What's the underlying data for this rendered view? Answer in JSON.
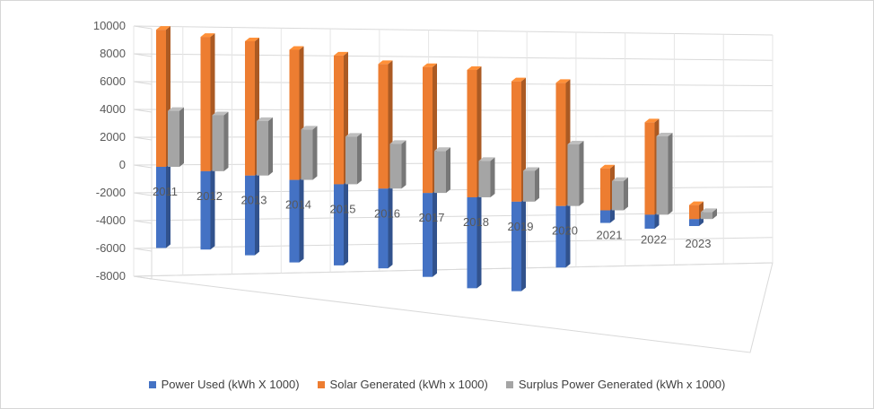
{
  "chart_data": {
    "type": "bar",
    "title": "",
    "xlabel": "",
    "ylabel": "",
    "ylim": [
      -8000,
      10000
    ],
    "yticks": [
      10000,
      8000,
      6000,
      4000,
      2000,
      0,
      -2000,
      -4000,
      -6000,
      -8000
    ],
    "categories": [
      "2011",
      "2012",
      "2013",
      "2014",
      "2015",
      "2016",
      "2017",
      "2018",
      "2019",
      "2020",
      "2021",
      "2022",
      "2023"
    ],
    "series": [
      {
        "name": "Power Used (kWh X 1000)",
        "color": "#4472C4",
        "values": [
          -5800,
          -5600,
          -5700,
          -5900,
          -5800,
          -5700,
          -6000,
          -6500,
          -6400,
          -4400,
          -900,
          -1000,
          -500
        ]
      },
      {
        "name": "Solar Generated (kWh x 1000)",
        "color": "#ED7D31",
        "values": [
          9800,
          9600,
          9600,
          9300,
          9200,
          8900,
          9000,
          9100,
          8600,
          8800,
          3000,
          6600,
          1000
        ]
      },
      {
        "name": "Surplus Power Generated (kWh x 1000)",
        "color": "#A5A5A5",
        "values": [
          4000,
          4000,
          3900,
          3600,
          3400,
          3200,
          3000,
          2600,
          2200,
          4400,
          2100,
          5600,
          500
        ]
      }
    ],
    "grid": true,
    "legend": "bottom"
  }
}
